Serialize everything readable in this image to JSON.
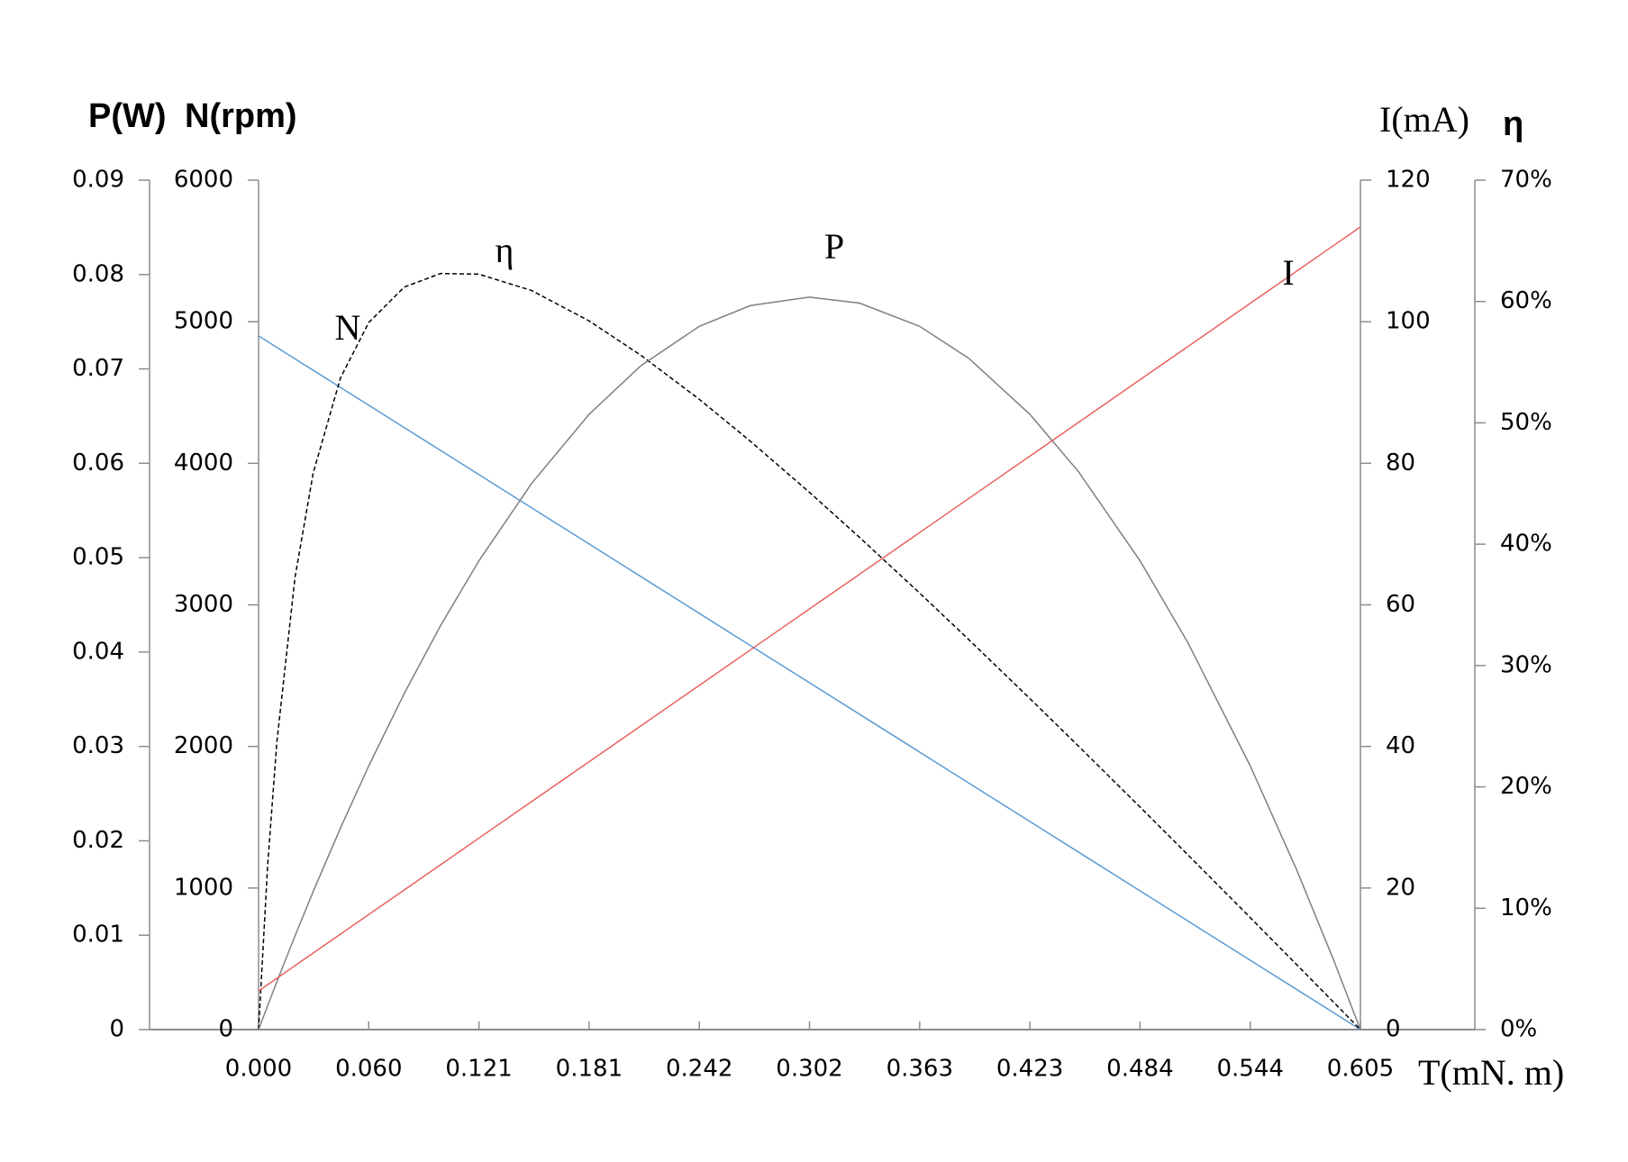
{
  "chart_data": {
    "type": "line",
    "xlabel": "T(mN. m)",
    "ylabel": "N(rpm)",
    "y2label": "I(mA)",
    "y3label": "P(W)",
    "y4label": "η",
    "xlim": [
      0,
      0.605
    ],
    "xticks": [
      {
        "value": 0,
        "label": "0.000"
      },
      {
        "value": 0.0605,
        "label": "0.060"
      },
      {
        "value": 0.121,
        "label": "0.121"
      },
      {
        "value": 0.1815,
        "label": "0.181"
      },
      {
        "value": 0.242,
        "label": "0.242"
      },
      {
        "value": 0.3025,
        "label": "0.302"
      },
      {
        "value": 0.363,
        "label": "0.363"
      },
      {
        "value": 0.4235,
        "label": "0.423"
      },
      {
        "value": 0.484,
        "label": "0.484"
      },
      {
        "value": 0.5445,
        "label": "0.544"
      },
      {
        "value": 0.605,
        "label": "0.605"
      }
    ],
    "ylim": [
      0,
      6000
    ],
    "yticks": [
      0,
      1000,
      2000,
      3000,
      4000,
      5000,
      6000
    ],
    "y2lim": [
      0,
      120
    ],
    "y2ticks": [
      0,
      20,
      40,
      60,
      80,
      100,
      120
    ],
    "y3lim": [
      0,
      0.09
    ],
    "y3ticks": [
      0,
      0.01,
      0.02,
      0.03,
      0.04,
      0.05,
      0.06,
      0.07,
      0.08,
      0.09
    ],
    "y4lim": [
      0,
      70
    ],
    "y4ticks": [
      {
        "value": 0,
        "label": "0%"
      },
      {
        "value": 10,
        "label": "10%"
      },
      {
        "value": 20,
        "label": "20%"
      },
      {
        "value": 30,
        "label": "30%"
      },
      {
        "value": 40,
        "label": "40%"
      },
      {
        "value": 50,
        "label": "50%"
      },
      {
        "value": 60,
        "label": "60%"
      },
      {
        "value": 70,
        "label": "70%"
      }
    ],
    "x": [
      0,
      0.005,
      0.01,
      0.02,
      0.03,
      0.045,
      0.0605,
      0.08,
      0.1,
      0.121,
      0.15,
      0.1815,
      0.21,
      0.242,
      0.27,
      0.3025,
      0.33,
      0.363,
      0.39,
      0.4235,
      0.45,
      0.484,
      0.51,
      0.5445,
      0.57,
      0.59,
      0.605
    ],
    "series": [
      {
        "name": "N",
        "color": "#5b9bd5",
        "axis": "y",
        "dash": false,
        "values": [
          4900,
          4859.5,
          4819,
          4738,
          4657,
          4535.5,
          4410,
          4252.1,
          4090.1,
          3920,
          3685.1,
          3430,
          3199.2,
          2940,
          2713.2,
          2450,
          2227.3,
          1960,
          1741.3,
          1470,
          1255.4,
          980,
          769.4,
          490,
          283.5,
          121.5,
          0
        ]
      },
      {
        "name": "η",
        "color": "#000000",
        "axis": "y4",
        "dash": true,
        "values": [
          0,
          13.58,
          23.62,
          37.26,
          45.87,
          53.71,
          58.27,
          61.19,
          62.31,
          62.25,
          60.9,
          58.4,
          55.56,
          51.94,
          48.49,
          44.27,
          40.56,
          35.97,
          32.13,
          27.28,
          23.39,
          18.34,
          14.44,
          9.23,
          5.35,
          2.3,
          0
        ]
      },
      {
        "name": "P",
        "color": "#808080",
        "axis": "y3",
        "dash": false,
        "values": [
          0,
          0.002544,
          0.005047,
          0.009923,
          0.01463,
          0.02137,
          0.02794,
          0.03562,
          0.04283,
          0.04967,
          0.05789,
          0.06519,
          0.07035,
          0.07451,
          0.07671,
          0.07761,
          0.07697,
          0.07451,
          0.07112,
          0.06519,
          0.05916,
          0.04967,
          0.04109,
          0.02794,
          0.01692,
          0.007507,
          0
        ]
      },
      {
        "name": "I",
        "color": "#e8625f",
        "axis": "y2",
        "dash": false,
        "values": [
          5.46,
          6.35,
          7.24,
          9.03,
          10.81,
          13.49,
          16.25,
          19.73,
          23.3,
          27.05,
          32.22,
          37.84,
          42.92,
          48.63,
          53.63,
          59.43,
          64.33,
          70.22,
          75.04,
          81.01,
          85.74,
          91.81,
          96.44,
          102.6,
          107.15,
          110.72,
          113.39
        ]
      }
    ]
  }
}
